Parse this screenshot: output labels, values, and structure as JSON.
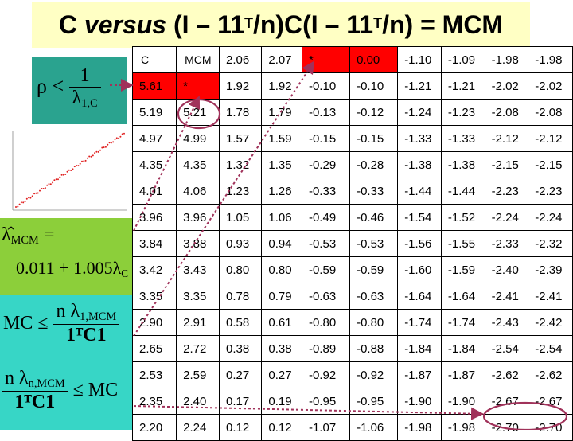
{
  "title": {
    "prefix": "C ",
    "italic": "versus",
    "part1": " (I – 11",
    "sup1": "T",
    "part2": "/n)C(I – 11",
    "sup2": "T",
    "part3": "/n) = MCM"
  },
  "formulas": {
    "rho": {
      "lhs": "ρ <",
      "num": "1",
      "den_main": "λ",
      "den_sub": "1,C"
    },
    "lambda_mcm": {
      "lhs_main": "λ̂",
      "lhs_sub": "MCM",
      "eq": "=",
      "rhs_main": "0.011 + 1.005λ",
      "rhs_sub": "C"
    },
    "mc_upper": {
      "lhs": "MC ≤",
      "num_main": "n λ",
      "num_sub": "1,MCM",
      "den": "1ᵀC1"
    },
    "mc_lower": {
      "num_main": "n λ",
      "num_sub": "n,MCM",
      "den": "1ᵀC1",
      "rhs": "≤ MC"
    }
  },
  "colors": {
    "title_bg": "#ffffc4",
    "rho_box": "#2aa38f",
    "lambda_box": "#8ccf3a",
    "mc_box": "#37d6c6",
    "highlight": "#ff0000",
    "arrow": "#a0325a"
  },
  "table": {
    "rows": [
      [
        "C",
        "MCM",
        "2.06",
        "2.07",
        "*",
        "0.00",
        "-1.10",
        "-1.09",
        "-1.98",
        "-1.98"
      ],
      [
        "5.61",
        "*",
        "1.92",
        "1.92",
        "-0.10",
        "-0.10",
        "-1.21",
        "-1.21",
        "-2.02",
        "-2.02"
      ],
      [
        "5.19",
        "5.21",
        "1.78",
        "1.79",
        "-0.13",
        "-0.12",
        "-1.24",
        "-1.23",
        "-2.08",
        "-2.08"
      ],
      [
        "4.97",
        "4.99",
        "1.57",
        "1.59",
        "-0.15",
        "-0.15",
        "-1.33",
        "-1.33",
        "-2.12",
        "-2.12"
      ],
      [
        "4.35",
        "4.35",
        "1.32",
        "1.35",
        "-0.29",
        "-0.28",
        "-1.38",
        "-1.38",
        "-2.15",
        "-2.15"
      ],
      [
        "4.01",
        "4.06",
        "1.23",
        "1.26",
        "-0.33",
        "-0.33",
        "-1.44",
        "-1.44",
        "-2.23",
        "-2.23"
      ],
      [
        "3.96",
        "3.96",
        "1.05",
        "1.06",
        "-0.49",
        "-0.46",
        "-1.54",
        "-1.52",
        "-2.24",
        "-2.24"
      ],
      [
        "3.84",
        "3.88",
        "0.93",
        "0.94",
        "-0.53",
        "-0.53",
        "-1.56",
        "-1.55",
        "-2.33",
        "-2.32"
      ],
      [
        "3.42",
        "3.43",
        "0.80",
        "0.80",
        "-0.59",
        "-0.59",
        "-1.60",
        "-1.59",
        "-2.40",
        "-2.39"
      ],
      [
        "3.35",
        "3.35",
        "0.78",
        "0.79",
        "-0.63",
        "-0.63",
        "-1.64",
        "-1.64",
        "-2.41",
        "-2.41"
      ],
      [
        "2.90",
        "2.91",
        "0.58",
        "0.61",
        "-0.80",
        "-0.80",
        "-1.74",
        "-1.74",
        "-2.43",
        "-2.42"
      ],
      [
        "2.65",
        "2.72",
        "0.38",
        "0.38",
        "-0.89",
        "-0.88",
        "-1.84",
        "-1.84",
        "-2.54",
        "-2.54"
      ],
      [
        "2.53",
        "2.59",
        "0.27",
        "0.27",
        "-0.92",
        "-0.92",
        "-1.87",
        "-1.87",
        "-2.62",
        "-2.62"
      ],
      [
        "2.35",
        "2.40",
        "0.17",
        "0.19",
        "-0.95",
        "-0.95",
        "-1.90",
        "-1.90",
        "-2.67",
        "-2.67"
      ],
      [
        "2.20",
        "2.24",
        "0.12",
        "0.12",
        "-1.07",
        "-1.06",
        "-1.98",
        "-1.98",
        "-2.70",
        "-2.70"
      ]
    ],
    "red_cells": [
      [
        0,
        4
      ],
      [
        0,
        5
      ],
      [
        1,
        0
      ],
      [
        1,
        1
      ]
    ]
  },
  "plot": {
    "type": "scatter",
    "description_points": 60
  }
}
